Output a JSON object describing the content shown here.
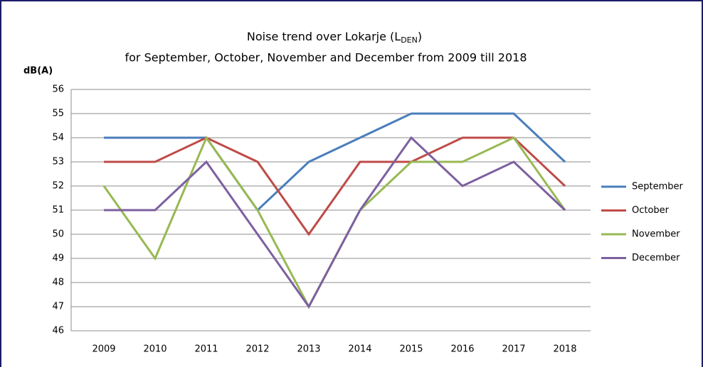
{
  "chart_data": {
    "type": "line",
    "title": [
      "Noise trend over Lokarje (L",
      "DEN",
      ")"
    ],
    "subtitle": "for September, October, November and December from 2009 till 2018",
    "y_label": "dB(A)",
    "categories": [
      "2009",
      "2010",
      "2011",
      "2012",
      "2013",
      "2014",
      "2015",
      "2016",
      "2017",
      "2018"
    ],
    "series": [
      {
        "name": "September",
        "color": "#4a7ebb",
        "values": [
          54,
          54,
          54,
          51,
          53,
          54,
          55,
          55,
          55,
          53
        ]
      },
      {
        "name": "October",
        "color": "#be4b48",
        "values": [
          53,
          53,
          54,
          53,
          50,
          53,
          53,
          54,
          54,
          52
        ]
      },
      {
        "name": "November",
        "color": "#98b954",
        "values": [
          52,
          49,
          54,
          51,
          47,
          51,
          53,
          53,
          54,
          51
        ]
      },
      {
        "name": "December",
        "color": "#7d60a0",
        "values": [
          51,
          51,
          53,
          50,
          47,
          51,
          54,
          52,
          53,
          51
        ]
      }
    ],
    "ylim": [
      46,
      56
    ],
    "yticks": [
      46,
      47,
      48,
      49,
      50,
      51,
      52,
      53,
      54,
      55,
      56
    ],
    "grid": true,
    "legend": "right"
  }
}
